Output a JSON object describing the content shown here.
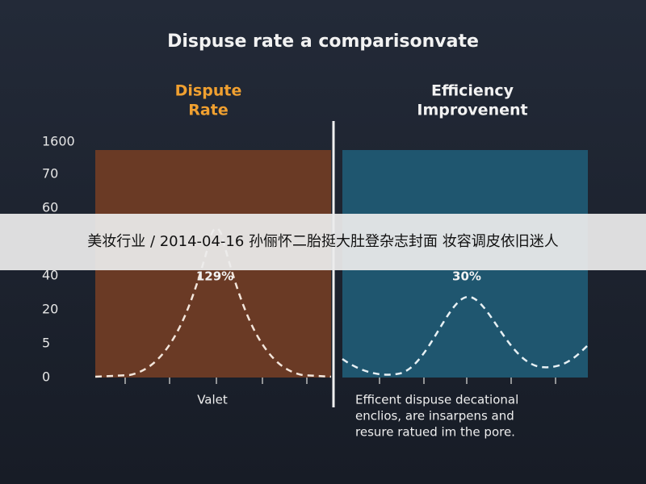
{
  "title": "Dispuse rate a comparisonvate",
  "left_panel": {
    "heading": [
      "Dispute",
      "Rate"
    ],
    "peak_label": "129%",
    "x_label": "Valet"
  },
  "right_panel": {
    "heading": [
      "Efficiency",
      "Improvenent"
    ],
    "peak_label": "30%",
    "caption": [
      "Efficent dispuse decational",
      "enclios, are insarpens and",
      "resure ratued im the pore."
    ]
  },
  "y_axis": {
    "labels": [
      "1600",
      "70",
      "60",
      "40",
      "20",
      "5",
      "0"
    ]
  },
  "banner": "美妆行业 / 2014-04-16 孙俪怀二胎挺大肚登杂志封面 妆容调皮依旧迷人"
}
